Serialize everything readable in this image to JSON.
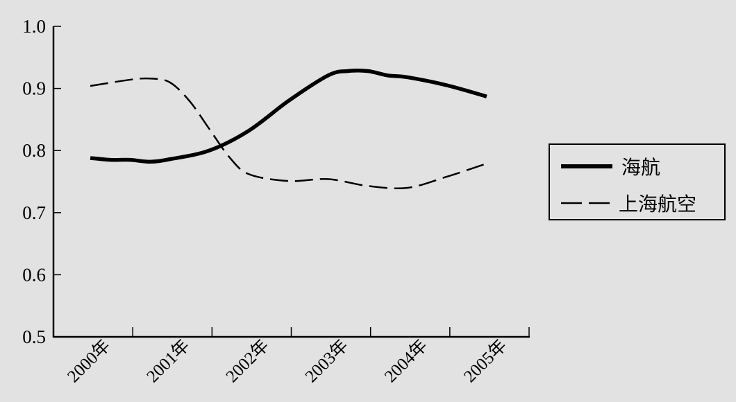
{
  "chart_data": {
    "type": "line",
    "title": "",
    "xlabel": "",
    "ylabel": "",
    "categories": [
      "2000年",
      "2001年",
      "2002年",
      "2003年",
      "2004年",
      "2005年"
    ],
    "ylim": [
      0.5,
      1.0
    ],
    "yticks": [
      "0.5",
      "0.6",
      "0.7",
      "0.8",
      "0.9",
      "1.0"
    ],
    "grid": false,
    "legend_position": "right",
    "series": [
      {
        "name": "海航",
        "style": "solid-thick",
        "color": "#000000",
        "points": [
          [
            2000,
            0.788
          ],
          [
            2000.25,
            0.785
          ],
          [
            2000.5,
            0.785
          ],
          [
            2000.75,
            0.782
          ],
          [
            2001,
            0.786
          ],
          [
            2001.5,
            0.8
          ],
          [
            2002,
            0.832
          ],
          [
            2002.5,
            0.88
          ],
          [
            2003,
            0.921
          ],
          [
            2003.25,
            0.928
          ],
          [
            2003.5,
            0.928
          ],
          [
            2003.75,
            0.921
          ],
          [
            2004,
            0.918
          ],
          [
            2004.5,
            0.905
          ],
          [
            2005,
            0.887
          ]
        ]
      },
      {
        "name": "上海航空",
        "style": "dashed",
        "color": "#000000",
        "points": [
          [
            2000,
            0.904
          ],
          [
            2000.5,
            0.914
          ],
          [
            2000.75,
            0.916
          ],
          [
            2001,
            0.91
          ],
          [
            2001.25,
            0.88
          ],
          [
            2001.5,
            0.835
          ],
          [
            2001.75,
            0.79
          ],
          [
            2002,
            0.762
          ],
          [
            2002.5,
            0.751
          ],
          [
            2003,
            0.754
          ],
          [
            2003.5,
            0.743
          ],
          [
            2004,
            0.74
          ],
          [
            2004.5,
            0.758
          ],
          [
            2005,
            0.779
          ]
        ]
      }
    ]
  }
}
